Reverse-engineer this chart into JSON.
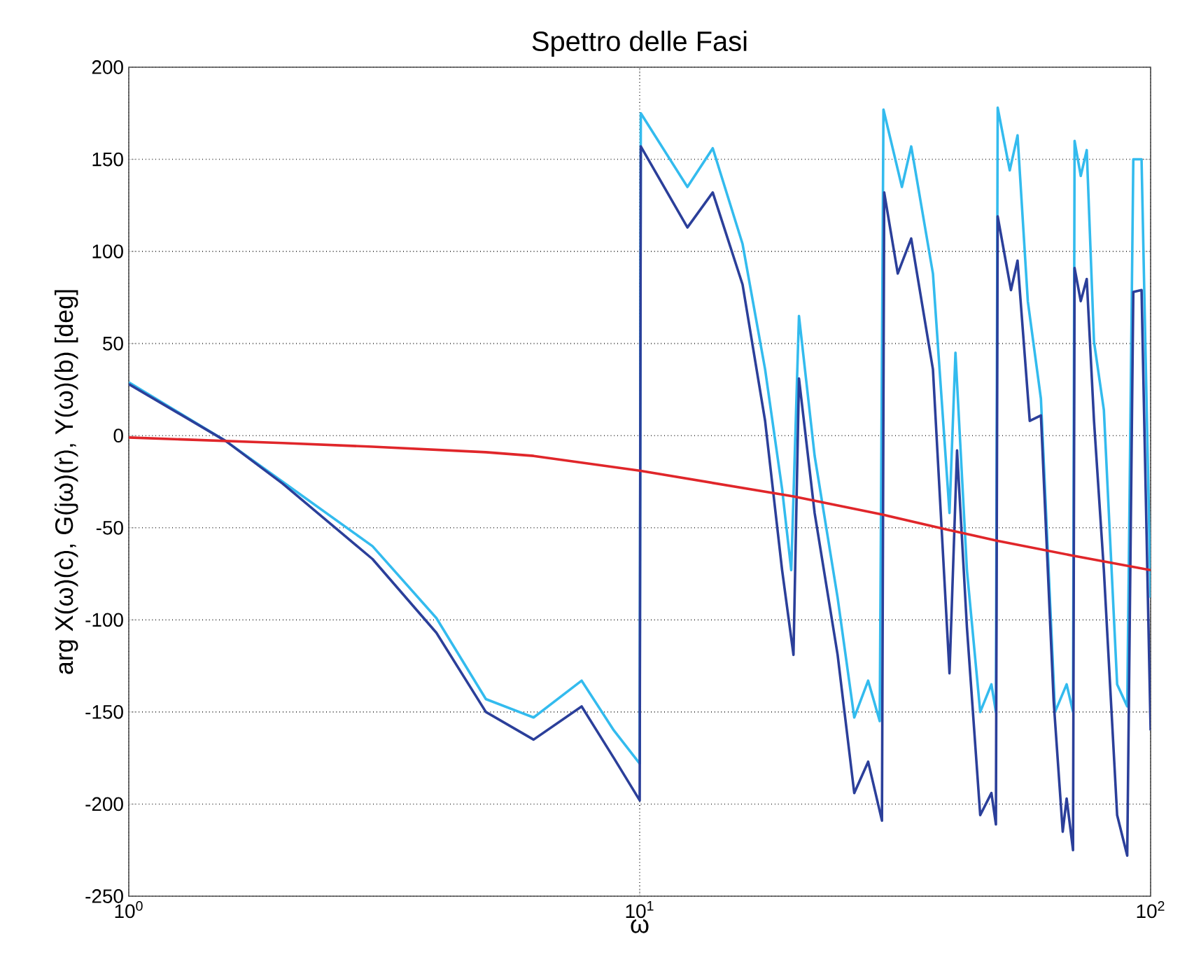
{
  "chart_data": {
    "type": "line",
    "title": "Spettro delle Fasi",
    "xlabel": "ω",
    "ylabel": "arg X(ω)(c), G(jω)(r), Y(ω)(b)  [deg]",
    "log": "x",
    "grid": true,
    "marker": "none",
    "line_style": "solid",
    "xlim": [
      1,
      100
    ],
    "xticks": [
      {
        "value": 1,
        "label": "10$^{0}$"
      },
      {
        "value": 10,
        "label": "10$^{1}$"
      },
      {
        "value": 100,
        "label": "10$^{2}$"
      }
    ],
    "ylim": [
      -250,
      200
    ],
    "yticks": [
      -250,
      -200,
      -150,
      -100,
      -50,
      0,
      50,
      100,
      150,
      200
    ],
    "series": [
      {
        "color": "#33bbee",
        "x": [
          1,
          1.55,
          2,
          3,
          4,
          5,
          6.2,
          7.7,
          8.9,
          10,
          10.05,
          12.4,
          13.9,
          15.9,
          17.6,
          19,
          19.8,
          20.5,
          22,
          24.4,
          26.3,
          28,
          29.5,
          30,
          32.6,
          34,
          37.5,
          40.4,
          41.5,
          43.7,
          46.4,
          48.8,
          49.8,
          50.2,
          53,
          54.9,
          57.5,
          61,
          65,
          68.5,
          70.5,
          71,
          73,
          75,
          77.5,
          81,
          86,
          90,
          92.5,
          96,
          100
        ],
        "values": [
          29,
          -3,
          -25,
          -60,
          -99,
          -143,
          -153,
          -133,
          -160,
          -178,
          175,
          135,
          156,
          104,
          36,
          -29,
          -73,
          65,
          -11,
          -88,
          -153,
          -133,
          -155,
          177,
          135,
          157,
          88,
          -42,
          45,
          -73,
          -150,
          -135,
          -150,
          178,
          144,
          163,
          73,
          20,
          -150,
          -135,
          -150,
          160,
          141,
          155,
          51,
          14,
          -135,
          -147,
          150,
          150,
          -88
        ]
      },
      {
        "color": "#2b3f9a",
        "x": [
          1,
          1.55,
          2,
          3,
          4,
          5,
          6.2,
          7.7,
          8.9,
          10,
          10.05,
          12.4,
          13.9,
          15.9,
          17.6,
          19,
          20,
          20.5,
          22,
          24.4,
          26.3,
          28,
          29.8,
          30.1,
          32,
          34,
          37.5,
          40.4,
          41.8,
          43.7,
          46.4,
          48.8,
          49.8,
          50.2,
          53.3,
          54.9,
          58,
          61,
          64.6,
          67.3,
          68.5,
          70.5,
          71,
          73,
          75,
          77.5,
          81,
          86,
          90,
          92.5,
          96,
          100
        ],
        "values": [
          28,
          -3,
          -26,
          -67,
          -107,
          -150,
          -165,
          -147,
          -175,
          -198,
          157,
          113,
          132,
          82,
          8,
          -73,
          -119,
          31,
          -42,
          -119,
          -194,
          -177,
          -209,
          132,
          88,
          107,
          36,
          -129,
          -8,
          -104,
          -206,
          -194,
          -211,
          119,
          79,
          95,
          8,
          11,
          -144,
          -215,
          -197,
          -225,
          91,
          73,
          85,
          8,
          -73,
          -206,
          -228,
          78,
          79,
          -160
        ]
      },
      {
        "color": "#e0262a",
        "x": [
          1,
          2,
          3,
          5,
          6.2,
          10,
          20,
          30,
          40,
          50,
          70,
          100
        ],
        "values": [
          -1,
          -4,
          -6,
          -9,
          -11,
          -19,
          -33,
          -43,
          -51,
          -57,
          -65,
          -73
        ]
      }
    ]
  }
}
